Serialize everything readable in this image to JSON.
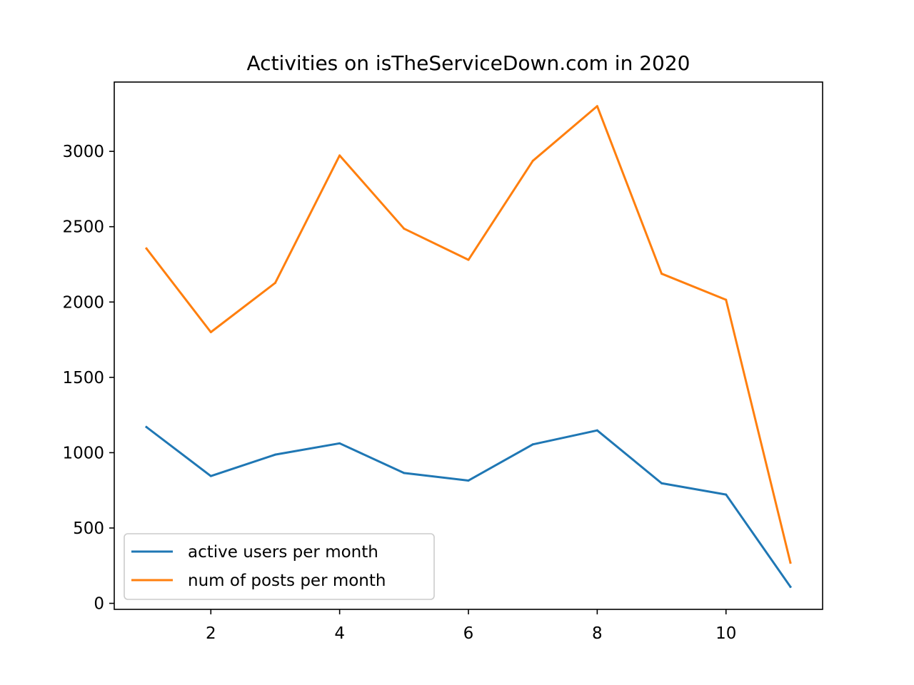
{
  "chart_data": {
    "type": "line",
    "title": "Activities on isTheServiceDown.com in 2020",
    "xlabel": "",
    "ylabel": "",
    "x": [
      1,
      2,
      3,
      4,
      5,
      6,
      7,
      8,
      9,
      10,
      11
    ],
    "series": [
      {
        "name": "active users per month",
        "color": "#1f77b4",
        "values": [
          1170,
          845,
          987,
          1062,
          865,
          815,
          1055,
          1148,
          797,
          722,
          110
        ]
      },
      {
        "name": "num of posts per month",
        "color": "#ff7f0e",
        "values": [
          2355,
          1800,
          2127,
          2973,
          2487,
          2280,
          2937,
          3300,
          2188,
          2015,
          270
        ]
      }
    ],
    "xlim": [
      0.5,
      11.5
    ],
    "ylim": [
      -40,
      3460
    ],
    "x_ticks": [
      "2",
      "4",
      "6",
      "8",
      "10"
    ],
    "y_ticks": [
      "0",
      "500",
      "1000",
      "1500",
      "2000",
      "2500",
      "3000"
    ],
    "grid": false,
    "legend_position": "lower-left"
  }
}
